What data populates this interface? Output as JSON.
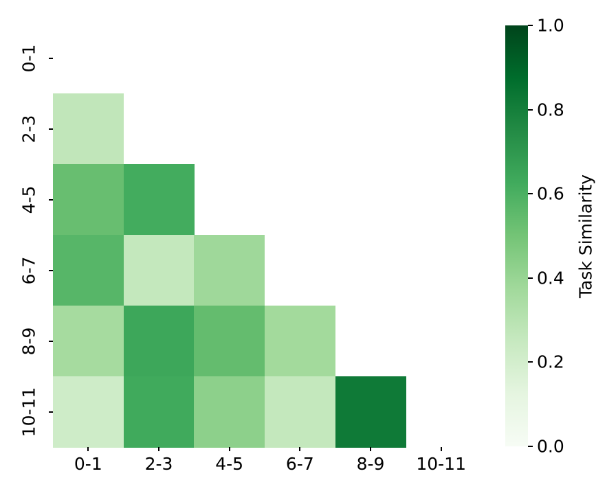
{
  "chart_data": {
    "type": "heatmap",
    "title": "",
    "xlabel": "",
    "ylabel": "",
    "colorbar_label": "Task Similarity",
    "colorbar_ticks": [
      1.0,
      0.8,
      0.6,
      0.4,
      0.2,
      0.0
    ],
    "colorbar_tick_labels": [
      "1.0",
      "0.8",
      "0.6",
      "0.4",
      "0.2",
      "0.0"
    ],
    "colorbar_range": [
      0.0,
      1.0
    ],
    "colormap": "Greens",
    "colormap_anchors": [
      {
        "t": 0.0,
        "color": "#f7fcf5"
      },
      {
        "t": 0.125,
        "color": "#e5f5e0"
      },
      {
        "t": 0.25,
        "color": "#c7e9c0"
      },
      {
        "t": 0.375,
        "color": "#a1d99b"
      },
      {
        "t": 0.5,
        "color": "#74c476"
      },
      {
        "t": 0.625,
        "color": "#41ab5d"
      },
      {
        "t": 0.75,
        "color": "#238b45"
      },
      {
        "t": 0.875,
        "color": "#006d2c"
      },
      {
        "t": 1.0,
        "color": "#00441b"
      }
    ],
    "x_tick_labels": [
      "0-1",
      "2-3",
      "4-5",
      "6-7",
      "8-9",
      "10-11"
    ],
    "y_tick_labels": [
      "0-1",
      "2-3",
      "4-5",
      "6-7",
      "8-9",
      "10-11"
    ],
    "shape": "lower-triangle",
    "matrix": [
      [
        null,
        null,
        null,
        null,
        null,
        null
      ],
      [
        0.27,
        null,
        null,
        null,
        null,
        null
      ],
      [
        0.53,
        0.62,
        null,
        null,
        null,
        null
      ],
      [
        0.57,
        0.26,
        0.38,
        null,
        null,
        null
      ],
      [
        0.36,
        0.64,
        0.54,
        0.37,
        null,
        null
      ],
      [
        0.22,
        0.63,
        0.43,
        0.26,
        0.82,
        null
      ]
    ]
  }
}
